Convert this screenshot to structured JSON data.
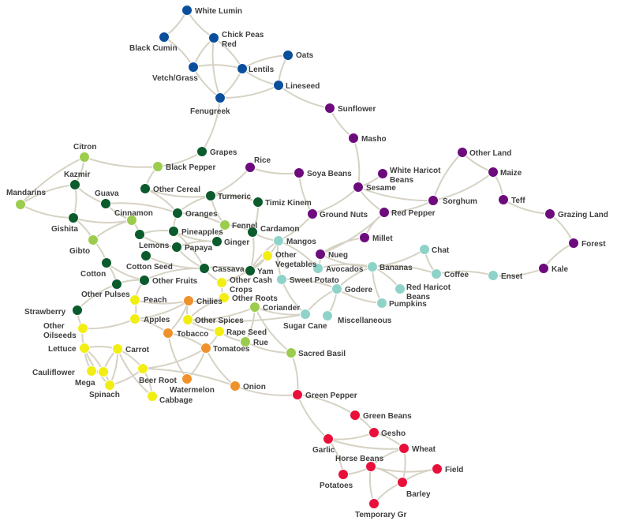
{
  "colors": {
    "blue": "#0b4f9c",
    "purple": "#6d0b7d",
    "darkgreen": "#0b5b2c",
    "lightgreen": "#9ccc4e",
    "teal": "#8fd3c8",
    "yellow": "#f2ee14",
    "orange": "#f0922b",
    "red": "#e8103a",
    "edge": "#d6d2c4"
  },
  "nodes": [
    {
      "id": "white-lumin",
      "label": "White Lumin",
      "color": "blue"
    },
    {
      "id": "black-cumin",
      "label": "Black Cumin",
      "color": "blue"
    },
    {
      "id": "chick-peas-red",
      "label": "Chick Peas\nRed",
      "color": "blue"
    },
    {
      "id": "vetch-grass",
      "label": "Vetch/Grass",
      "color": "blue"
    },
    {
      "id": "lentils",
      "label": "Lentils",
      "color": "blue"
    },
    {
      "id": "oats",
      "label": "Oats",
      "color": "blue"
    },
    {
      "id": "lineseed",
      "label": "Lineseed",
      "color": "blue"
    },
    {
      "id": "fenugreek",
      "label": "Fenugreek",
      "color": "blue"
    },
    {
      "id": "sunflower",
      "label": "Sunflower",
      "color": "purple"
    },
    {
      "id": "masho",
      "label": "Masho",
      "color": "purple"
    },
    {
      "id": "rice",
      "label": "Rice",
      "color": "purple"
    },
    {
      "id": "soya-beans",
      "label": "Soya Beans",
      "color": "purple"
    },
    {
      "id": "white-haricot-beans",
      "label": "White Haricot\nBeans",
      "color": "purple"
    },
    {
      "id": "sesame",
      "label": "Sesame",
      "color": "purple"
    },
    {
      "id": "sorghum",
      "label": "Sorghum",
      "color": "purple"
    },
    {
      "id": "other-land",
      "label": "Other Land",
      "color": "purple"
    },
    {
      "id": "maize",
      "label": "Maize",
      "color": "purple"
    },
    {
      "id": "teff",
      "label": "Teff",
      "color": "purple"
    },
    {
      "id": "grazing-land",
      "label": "Grazing Land",
      "color": "purple"
    },
    {
      "id": "forest",
      "label": "Forest",
      "color": "purple"
    },
    {
      "id": "kale",
      "label": "Kale",
      "color": "purple"
    },
    {
      "id": "ground-nuts",
      "label": "Ground Nuts",
      "color": "purple"
    },
    {
      "id": "red-pepper",
      "label": "Red Pepper",
      "color": "purple"
    },
    {
      "id": "millet",
      "label": "Millet",
      "color": "purple"
    },
    {
      "id": "nueg",
      "label": "Nueg",
      "color": "purple"
    },
    {
      "id": "grapes",
      "label": "Grapes",
      "color": "darkgreen"
    },
    {
      "id": "kazmir",
      "label": "Kazmir",
      "color": "darkgreen"
    },
    {
      "id": "gishita",
      "label": "Gishita",
      "color": "darkgreen"
    },
    {
      "id": "guava",
      "label": "Guava",
      "color": "darkgreen"
    },
    {
      "id": "other-cereal",
      "label": "Other Cereal",
      "color": "darkgreen"
    },
    {
      "id": "turmeric",
      "label": "Turmeric",
      "color": "darkgreen"
    },
    {
      "id": "timiz-kinem",
      "label": "Timiz Kinem",
      "color": "darkgreen"
    },
    {
      "id": "oranges",
      "label": "Oranges",
      "color": "darkgreen"
    },
    {
      "id": "lemons",
      "label": "Lemons",
      "color": "darkgreen"
    },
    {
      "id": "pineapples",
      "label": "Pineapples",
      "color": "darkgreen"
    },
    {
      "id": "cardamon",
      "label": "Cardamon",
      "color": "darkgreen"
    },
    {
      "id": "ginger",
      "label": "Ginger",
      "color": "darkgreen"
    },
    {
      "id": "papaya",
      "label": "Papaya",
      "color": "darkgreen"
    },
    {
      "id": "cotton-seed",
      "label": "Cotton Seed",
      "color": "darkgreen"
    },
    {
      "id": "cassava",
      "label": "Cassava",
      "color": "darkgreen"
    },
    {
      "id": "yam",
      "label": "Yam",
      "color": "darkgreen"
    },
    {
      "id": "cotton",
      "label": "Cotton",
      "color": "darkgreen"
    },
    {
      "id": "other-fruits",
      "label": "Other Fruits",
      "color": "darkgreen"
    },
    {
      "id": "other-pulses",
      "label": "Other Pulses",
      "color": "darkgreen"
    },
    {
      "id": "strawberry",
      "label": "Strawberry",
      "color": "darkgreen"
    },
    {
      "id": "citron",
      "label": "Citron",
      "color": "lightgreen"
    },
    {
      "id": "black-pepper",
      "label": "Black Pepper",
      "color": "lightgreen"
    },
    {
      "id": "mandarins",
      "label": "Mandarins",
      "color": "lightgreen"
    },
    {
      "id": "cinnamon",
      "label": "Cinnamon",
      "color": "lightgreen"
    },
    {
      "id": "gibto",
      "label": "Gibto",
      "color": "lightgreen"
    },
    {
      "id": "fennel",
      "label": "Fennel",
      "color": "lightgreen"
    },
    {
      "id": "coriander",
      "label": "Coriander",
      "color": "lightgreen"
    },
    {
      "id": "rue",
      "label": "Rue",
      "color": "lightgreen"
    },
    {
      "id": "sacred-basil",
      "label": "Sacred Basil",
      "color": "lightgreen"
    },
    {
      "id": "mangos",
      "label": "Mangos",
      "color": "teal"
    },
    {
      "id": "avocados",
      "label": "Avocados",
      "color": "teal"
    },
    {
      "id": "bananas",
      "label": "Bananas",
      "color": "teal"
    },
    {
      "id": "chat",
      "label": "Chat",
      "color": "teal"
    },
    {
      "id": "coffee",
      "label": "Coffee",
      "color": "teal"
    },
    {
      "id": "enset",
      "label": "Enset",
      "color": "teal"
    },
    {
      "id": "sweet-potato",
      "label": "Sweet Potato",
      "color": "teal"
    },
    {
      "id": "godere",
      "label": "Godere",
      "color": "teal"
    },
    {
      "id": "red-haricot-beans",
      "label": "Red Haricot\nBeans",
      "color": "teal"
    },
    {
      "id": "pumpkins",
      "label": "Pumpkins",
      "color": "teal"
    },
    {
      "id": "sugar-cane",
      "label": "Sugar Cane",
      "color": "teal"
    },
    {
      "id": "miscellaneous",
      "label": "Miscellaneous",
      "color": "teal"
    },
    {
      "id": "other-vegetables",
      "label": "Other\nVegetables",
      "color": "yellow"
    },
    {
      "id": "other-cash-crops",
      "label": "Other Cash\nCrops",
      "color": "yellow"
    },
    {
      "id": "other-roots",
      "label": "Other Roots",
      "color": "yellow"
    },
    {
      "id": "peach",
      "label": "Peach",
      "color": "yellow"
    },
    {
      "id": "apples",
      "label": "Apples",
      "color": "yellow"
    },
    {
      "id": "other-spices",
      "label": "Other Spices",
      "color": "yellow"
    },
    {
      "id": "rape-seed",
      "label": "Rape Seed",
      "color": "yellow"
    },
    {
      "id": "other-oilseeds",
      "label": "Other\nOilseeds",
      "color": "yellow"
    },
    {
      "id": "lettuce",
      "label": "Lettuce",
      "color": "yellow"
    },
    {
      "id": "carrot",
      "label": "Carrot",
      "color": "yellow"
    },
    {
      "id": "cauliflower",
      "label": "Cauliflower",
      "color": "yellow"
    },
    {
      "id": "mega",
      "label": "Mega",
      "color": "yellow"
    },
    {
      "id": "spinach",
      "label": "Spinach",
      "color": "yellow"
    },
    {
      "id": "beer-root",
      "label": "Beer Root",
      "color": "yellow"
    },
    {
      "id": "cabbage",
      "label": "Cabbage",
      "color": "yellow"
    },
    {
      "id": "chilies",
      "label": "Chilies",
      "color": "orange"
    },
    {
      "id": "tobacco",
      "label": "Tobacco",
      "color": "orange"
    },
    {
      "id": "tomatoes",
      "label": "Tomatoes",
      "color": "orange"
    },
    {
      "id": "watermelon",
      "label": "Watermelon",
      "color": "orange"
    },
    {
      "id": "onion",
      "label": "Onion",
      "color": "orange"
    },
    {
      "id": "green-pepper",
      "label": "Green Pepper",
      "color": "red"
    },
    {
      "id": "green-beans",
      "label": "Green Beans",
      "color": "red"
    },
    {
      "id": "gesho",
      "label": "Gesho",
      "color": "red"
    },
    {
      "id": "garlic",
      "label": "Garlic",
      "color": "red"
    },
    {
      "id": "wheat",
      "label": "Wheat",
      "color": "red"
    },
    {
      "id": "horse-beans",
      "label": "Horse Beans",
      "color": "red"
    },
    {
      "id": "field",
      "label": "Field",
      "color": "red"
    },
    {
      "id": "potatoes",
      "label": "Potatoes",
      "color": "red"
    },
    {
      "id": "barley",
      "label": "Barley",
      "color": "red"
    },
    {
      "id": "temporary-gr",
      "label": "Temporary Gr",
      "color": "red"
    }
  ],
  "edges": [
    [
      "white-lumin",
      "black-cumin"
    ],
    [
      "white-lumin",
      "chick-peas-red"
    ],
    [
      "black-cumin",
      "vetch-grass"
    ],
    [
      "chick-peas-red",
      "vetch-grass"
    ],
    [
      "chick-peas-red",
      "lentils"
    ],
    [
      "chick-peas-red",
      "fenugreek"
    ],
    [
      "vetch-grass",
      "lentils"
    ],
    [
      "vetch-grass",
      "fenugreek"
    ],
    [
      "lentils",
      "oats"
    ],
    [
      "lentils",
      "lineseed"
    ],
    [
      "lentils",
      "fenugreek"
    ],
    [
      "oats",
      "lineseed"
    ],
    [
      "lineseed",
      "fenugreek"
    ],
    [
      "lineseed",
      "sunflower"
    ],
    [
      "fenugreek",
      "grapes"
    ],
    [
      "sunflower",
      "masho"
    ],
    [
      "masho",
      "sesame"
    ],
    [
      "rice",
      "soya-beans"
    ],
    [
      "rice",
      "turmeric"
    ],
    [
      "soya-beans",
      "ground-nuts"
    ],
    [
      "white-haricot-beans",
      "sesame"
    ],
    [
      "sesame",
      "sorghum"
    ],
    [
      "sesame",
      "ground-nuts"
    ],
    [
      "sesame",
      "red-pepper"
    ],
    [
      "sorghum",
      "other-land"
    ],
    [
      "sorghum",
      "maize"
    ],
    [
      "sorghum",
      "red-pepper"
    ],
    [
      "other-land",
      "maize"
    ],
    [
      "maize",
      "teff"
    ],
    [
      "teff",
      "grazing-land"
    ],
    [
      "grazing-land",
      "forest"
    ],
    [
      "forest",
      "kale"
    ],
    [
      "kale",
      "enset"
    ],
    [
      "red-pepper",
      "millet"
    ],
    [
      "red-pepper",
      "nueg"
    ],
    [
      "millet",
      "nueg"
    ],
    [
      "nueg",
      "avocados"
    ],
    [
      "nueg",
      "bananas"
    ],
    [
      "ground-nuts",
      "mangos"
    ],
    [
      "citron",
      "black-pepper"
    ],
    [
      "citron",
      "kazmir"
    ],
    [
      "citron",
      "mandarins"
    ],
    [
      "grapes",
      "black-pepper"
    ],
    [
      "black-pepper",
      "other-cereal"
    ],
    [
      "mandarins",
      "kazmir"
    ],
    [
      "mandarins",
      "gishita"
    ],
    [
      "kazmir",
      "gishita"
    ],
    [
      "kazmir",
      "guava"
    ],
    [
      "gishita",
      "gibto"
    ],
    [
      "gishita",
      "cinnamon"
    ],
    [
      "guava",
      "oranges"
    ],
    [
      "guava",
      "cinnamon"
    ],
    [
      "cinnamon",
      "lemons"
    ],
    [
      "cinnamon",
      "gibto"
    ],
    [
      "gibto",
      "cotton"
    ],
    [
      "other-cereal",
      "turmeric"
    ],
    [
      "other-cereal",
      "oranges"
    ],
    [
      "turmeric",
      "fennel"
    ],
    [
      "turmeric",
      "timiz-kinem"
    ],
    [
      "turmeric",
      "oranges"
    ],
    [
      "timiz-kinem",
      "cardamon"
    ],
    [
      "oranges",
      "pineapples"
    ],
    [
      "oranges",
      "fennel"
    ],
    [
      "lemons",
      "papaya"
    ],
    [
      "lemons",
      "pineapples"
    ],
    [
      "pineapples",
      "ginger"
    ],
    [
      "pineapples",
      "cassava"
    ],
    [
      "papaya",
      "cassava"
    ],
    [
      "papaya",
      "ginger"
    ],
    [
      "cardamon",
      "mangos"
    ],
    [
      "cardamon",
      "yam"
    ],
    [
      "fennel",
      "ginger"
    ],
    [
      "fennel",
      "cardamon"
    ],
    [
      "cotton-seed",
      "cassava"
    ],
    [
      "cotton",
      "other-pulses"
    ],
    [
      "cotton",
      "other-fruits"
    ],
    [
      "other-fruits",
      "cassava"
    ],
    [
      "other-fruits",
      "peach"
    ],
    [
      "other-pulses",
      "other-fruits"
    ],
    [
      "strawberry",
      "other-oilseeds"
    ],
    [
      "cassava",
      "yam"
    ],
    [
      "cassava",
      "other-cash-crops"
    ],
    [
      "yam",
      "mangos"
    ],
    [
      "yam",
      "other-vegetables"
    ],
    [
      "mangos",
      "avocados"
    ],
    [
      "mangos",
      "sweet-potato"
    ],
    [
      "avocados",
      "bananas"
    ],
    [
      "bananas",
      "chat"
    ],
    [
      "bananas",
      "coffee"
    ],
    [
      "bananas",
      "godere"
    ],
    [
      "bananas",
      "red-haricot-beans"
    ],
    [
      "bananas",
      "pumpkins"
    ],
    [
      "coffee",
      "enset"
    ],
    [
      "chat",
      "coffee"
    ],
    [
      "sweet-potato",
      "godere"
    ],
    [
      "godere",
      "pumpkins"
    ],
    [
      "godere",
      "miscellaneous"
    ],
    [
      "godere",
      "sugar-cane"
    ],
    [
      "sugar-cane",
      "coriander"
    ],
    [
      "sweet-potato",
      "sugar-cane"
    ],
    [
      "other-vegetables",
      "other-cash-crops"
    ],
    [
      "other-cash-crops",
      "other-roots"
    ],
    [
      "other-roots",
      "chilies"
    ],
    [
      "other-roots",
      "other-spices"
    ],
    [
      "peach",
      "apples"
    ],
    [
      "peach",
      "chilies"
    ],
    [
      "apples",
      "other-oilseeds"
    ],
    [
      "apples",
      "chilies"
    ],
    [
      "apples",
      "tobacco"
    ],
    [
      "chilies",
      "other-spices"
    ],
    [
      "chilies",
      "tobacco"
    ],
    [
      "other-spices",
      "rape-seed"
    ],
    [
      "coriander",
      "other-spices"
    ],
    [
      "coriander",
      "sacred-basil"
    ],
    [
      "coriander",
      "rue"
    ],
    [
      "rape-seed",
      "rue"
    ],
    [
      "rape-seed",
      "tomatoes"
    ],
    [
      "rue",
      "sacred-basil"
    ],
    [
      "sacred-basil",
      "green-pepper"
    ],
    [
      "tomatoes",
      "onion"
    ],
    [
      "tomatoes",
      "watermelon"
    ],
    [
      "other-oilseeds",
      "lettuce"
    ],
    [
      "lettuce",
      "carrot"
    ],
    [
      "lettuce",
      "cauliflower"
    ],
    [
      "lettuce",
      "mega"
    ],
    [
      "lettuce",
      "spinach"
    ],
    [
      "carrot",
      "beer-root"
    ],
    [
      "carrot",
      "mega"
    ],
    [
      "carrot",
      "spinach"
    ],
    [
      "carrot",
      "cabbage"
    ],
    [
      "mega",
      "spinach"
    ],
    [
      "spinach",
      "beer-root"
    ],
    [
      "beer-root",
      "cabbage"
    ],
    [
      "beer-root",
      "tomatoes"
    ],
    [
      "beer-root",
      "onion"
    ],
    [
      "tobacco",
      "watermelon"
    ],
    [
      "tobacco",
      "tomatoes"
    ],
    [
      "onion",
      "green-pepper"
    ],
    [
      "green-pepper",
      "green-beans"
    ],
    [
      "green-pepper",
      "garlic"
    ],
    [
      "green-beans",
      "gesho"
    ],
    [
      "garlic",
      "gesho"
    ],
    [
      "garlic",
      "potatoes"
    ],
    [
      "garlic",
      "wheat"
    ],
    [
      "gesho",
      "wheat"
    ],
    [
      "wheat",
      "horse-beans"
    ],
    [
      "wheat",
      "barley"
    ],
    [
      "horse-beans",
      "field"
    ],
    [
      "horse-beans",
      "barley"
    ],
    [
      "horse-beans",
      "temporary-gr"
    ],
    [
      "barley",
      "field"
    ],
    [
      "barley",
      "temporary-gr"
    ],
    [
      "horse-beans",
      "potatoes"
    ],
    [
      "other-vegetables",
      "mangos"
    ],
    [
      "strawberry",
      "other-pulses"
    ],
    [
      "other-spices",
      "sugar-cane"
    ]
  ]
}
